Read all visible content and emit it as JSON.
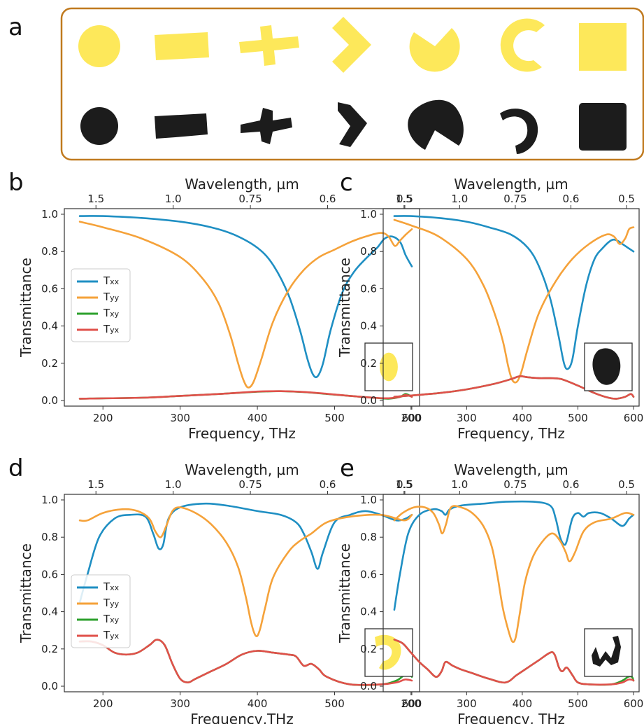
{
  "panel_a": {
    "label": "a",
    "border_color": "#c07a1f",
    "yellow_color": "#fde85a",
    "black_color": "#1c1c1c",
    "shapes_top": [
      "circle",
      "rectangle",
      "cross",
      "chevron",
      "pacman",
      "c-ring",
      "square"
    ],
    "shapes_bottom": [
      "circle",
      "rectangle",
      "cross",
      "chevron",
      "pacman",
      "c-ring",
      "square"
    ]
  },
  "colors": {
    "Txx": "#1f8fc3",
    "Tyy": "#f5a23a",
    "Txy": "#2ca02c",
    "Tyx": "#e0504a"
  },
  "chart_data": [
    {
      "panel": "b",
      "type": "line",
      "xlabel": "Frequency, THz",
      "ylabel": "Transmittance",
      "top_xlabel": "Wavelength, µm",
      "xlim": [
        150,
        610
      ],
      "ylim": [
        -0.03,
        1.03
      ],
      "xticks": [
        "200",
        "300",
        "400",
        "500",
        "600"
      ],
      "xtick_values": [
        200,
        300,
        400,
        500,
        600
      ],
      "yticks": [
        "0.0",
        "0.2",
        "0.4",
        "0.6",
        "0.8",
        "1.0"
      ],
      "ytick_values": [
        0,
        0.2,
        0.4,
        0.6,
        0.8,
        1.0
      ],
      "top_ticks": [
        "1.5",
        "1.0",
        "0.75",
        "0.6",
        "0.5"
      ],
      "top_tick_freqs": [
        200,
        300,
        400,
        500,
        600
      ],
      "legend": [
        "Txx",
        "Tyy",
        "Txy",
        "Tyx"
      ],
      "legend_position": "left",
      "inset": "yellow-ellipse",
      "series": [
        {
          "name": "Txx",
          "x": [
            170,
            200,
            250,
            300,
            340,
            370,
            400,
            420,
            440,
            455,
            465,
            472,
            478,
            485,
            495,
            510,
            525,
            540,
            555,
            565,
            575,
            585,
            592,
            600
          ],
          "y": [
            0.99,
            0.99,
            0.98,
            0.96,
            0.93,
            0.89,
            0.82,
            0.73,
            0.57,
            0.38,
            0.22,
            0.14,
            0.13,
            0.2,
            0.38,
            0.58,
            0.69,
            0.76,
            0.82,
            0.87,
            0.88,
            0.85,
            0.78,
            0.72
          ]
        },
        {
          "name": "Tyy",
          "x": [
            170,
            200,
            250,
            300,
            330,
            350,
            365,
            375,
            382,
            388,
            395,
            405,
            420,
            440,
            460,
            480,
            500,
            520,
            540,
            560,
            570,
            578,
            585,
            592,
            600
          ],
          "y": [
            0.96,
            0.93,
            0.87,
            0.77,
            0.65,
            0.52,
            0.35,
            0.2,
            0.11,
            0.07,
            0.1,
            0.22,
            0.42,
            0.59,
            0.7,
            0.77,
            0.81,
            0.85,
            0.88,
            0.9,
            0.88,
            0.83,
            0.86,
            0.89,
            0.92
          ]
        },
        {
          "name": "Txy",
          "x": [
            170,
            250,
            300,
            350,
            400,
            430,
            460,
            490,
            520,
            550,
            570,
            585,
            592,
            600
          ],
          "y": [
            0.01,
            0.015,
            0.025,
            0.035,
            0.047,
            0.05,
            0.045,
            0.035,
            0.025,
            0.015,
            0.01,
            0.02,
            0.035,
            0.02
          ]
        },
        {
          "name": "Tyx",
          "x": [
            170,
            250,
            300,
            350,
            400,
            430,
            460,
            490,
            520,
            550,
            570,
            585,
            592,
            600
          ],
          "y": [
            0.01,
            0.015,
            0.025,
            0.035,
            0.048,
            0.05,
            0.046,
            0.036,
            0.025,
            0.015,
            0.012,
            0.02,
            0.03,
            0.02
          ]
        }
      ]
    },
    {
      "panel": "c",
      "type": "line",
      "xlabel": "Frequency, THz",
      "ylabel": "Transmittance",
      "top_xlabel": "Wavelength, µm",
      "xlim": [
        150,
        610
      ],
      "ylim": [
        -0.03,
        1.03
      ],
      "xticks": [
        "200",
        "300",
        "400",
        "500",
        "600"
      ],
      "xtick_values": [
        200,
        300,
        400,
        500,
        600
      ],
      "yticks": [
        "0.0",
        "0.2",
        "0.4",
        "0.6",
        "0.8",
        "1.0"
      ],
      "ytick_values": [
        0,
        0.2,
        0.4,
        0.6,
        0.8,
        1.0
      ],
      "top_ticks": [
        "1.5",
        "1.0",
        "0.75",
        "0.6",
        "0.5"
      ],
      "top_tick_freqs": [
        200,
        300,
        400,
        500,
        600
      ],
      "inset": "black-blob",
      "series": [
        {
          "name": "Txx",
          "x": [
            170,
            200,
            250,
            300,
            340,
            380,
            410,
            430,
            450,
            465,
            475,
            482,
            490,
            500,
            515,
            530,
            545,
            560,
            570,
            580,
            590,
            600
          ],
          "y": [
            0.99,
            0.99,
            0.98,
            0.96,
            0.93,
            0.89,
            0.82,
            0.72,
            0.55,
            0.35,
            0.2,
            0.17,
            0.22,
            0.4,
            0.62,
            0.76,
            0.82,
            0.86,
            0.86,
            0.84,
            0.82,
            0.8
          ]
        },
        {
          "name": "Tyy",
          "x": [
            170,
            200,
            250,
            300,
            330,
            350,
            365,
            375,
            382,
            390,
            398,
            410,
            430,
            460,
            490,
            520,
            550,
            565,
            575,
            585,
            592,
            600
          ],
          "y": [
            0.97,
            0.94,
            0.88,
            0.76,
            0.62,
            0.47,
            0.32,
            0.18,
            0.11,
            0.1,
            0.15,
            0.28,
            0.47,
            0.64,
            0.76,
            0.84,
            0.89,
            0.88,
            0.84,
            0.87,
            0.92,
            0.93
          ]
        },
        {
          "name": "Txy",
          "x": [
            170,
            250,
            300,
            350,
            380,
            395,
            410,
            430,
            450,
            470,
            500,
            530,
            555,
            570,
            585,
            595,
            600
          ],
          "y": [
            0.02,
            0.04,
            0.06,
            0.09,
            0.115,
            0.13,
            0.125,
            0.12,
            0.12,
            0.115,
            0.08,
            0.04,
            0.015,
            0.01,
            0.02,
            0.035,
            0.02
          ]
        },
        {
          "name": "Tyx",
          "x": [
            170,
            250,
            300,
            350,
            380,
            395,
            410,
            430,
            450,
            470,
            500,
            530,
            555,
            570,
            585,
            595,
            600
          ],
          "y": [
            0.02,
            0.04,
            0.06,
            0.09,
            0.115,
            0.13,
            0.125,
            0.12,
            0.12,
            0.115,
            0.08,
            0.04,
            0.015,
            0.01,
            0.02,
            0.035,
            0.02
          ]
        }
      ]
    },
    {
      "panel": "d",
      "type": "line",
      "xlabel": "Frequency,THz",
      "ylabel": "Transmittance",
      "top_xlabel": "Wavelength, µm",
      "xlim": [
        150,
        610
      ],
      "ylim": [
        -0.03,
        1.03
      ],
      "xticks": [
        "200",
        "300",
        "400",
        "500",
        "600"
      ],
      "xtick_values": [
        200,
        300,
        400,
        500,
        600
      ],
      "yticks": [
        "0.0",
        "0.2",
        "0.4",
        "0.6",
        "0.8",
        "1.0"
      ],
      "ytick_values": [
        0,
        0.2,
        0.4,
        0.6,
        0.8,
        1.0
      ],
      "top_ticks": [
        "1.5",
        "1.0",
        "0.75",
        "0.6",
        "0.5"
      ],
      "top_tick_freqs": [
        200,
        300,
        400,
        500,
        600
      ],
      "legend": [
        "Txx",
        "Tyy",
        "Txy",
        "Tyx"
      ],
      "legend_position": "left",
      "inset": "yellow-c-shape",
      "series": [
        {
          "name": "Txx",
          "x": [
            170,
            180,
            195,
            215,
            235,
            255,
            265,
            272,
            278,
            285,
            300,
            330,
            360,
            400,
            430,
            450,
            460,
            470,
            478,
            485,
            500,
            520,
            540,
            560,
            580,
            592,
            600
          ],
          "y": [
            0.45,
            0.6,
            0.8,
            0.9,
            0.92,
            0.91,
            0.82,
            0.74,
            0.76,
            0.9,
            0.96,
            0.98,
            0.97,
            0.94,
            0.92,
            0.88,
            0.82,
            0.72,
            0.63,
            0.72,
            0.88,
            0.92,
            0.94,
            0.92,
            0.89,
            0.9,
            0.92
          ]
        },
        {
          "name": "Tyy",
          "x": [
            170,
            180,
            200,
            225,
            245,
            260,
            268,
            275,
            282,
            290,
            300,
            320,
            340,
            360,
            375,
            385,
            392,
            398,
            403,
            410,
            420,
            440,
            455,
            470,
            490,
            520,
            560,
            590,
            600
          ],
          "y": [
            0.89,
            0.89,
            0.93,
            0.95,
            0.94,
            0.9,
            0.83,
            0.8,
            0.86,
            0.94,
            0.96,
            0.93,
            0.87,
            0.77,
            0.64,
            0.48,
            0.34,
            0.27,
            0.3,
            0.42,
            0.58,
            0.72,
            0.78,
            0.82,
            0.88,
            0.91,
            0.92,
            0.89,
            0.92
          ]
        },
        {
          "name": "Txy",
          "x": [
            170,
            185,
            200,
            215,
            230,
            245,
            260,
            270,
            280,
            290,
            300,
            310,
            320,
            340,
            360,
            380,
            400,
            420,
            440,
            450,
            460,
            470,
            480,
            490,
            520,
            560,
            580,
            590,
            595,
            600
          ],
          "y": [
            0.24,
            0.24,
            0.22,
            0.18,
            0.17,
            0.18,
            0.22,
            0.25,
            0.22,
            0.12,
            0.04,
            0.02,
            0.04,
            0.08,
            0.12,
            0.17,
            0.19,
            0.18,
            0.17,
            0.16,
            0.11,
            0.12,
            0.09,
            0.05,
            0.01,
            0.01,
            0.03,
            0.06,
            0.07,
            0.05
          ]
        },
        {
          "name": "Tyx",
          "x": [
            170,
            185,
            200,
            215,
            230,
            245,
            260,
            270,
            280,
            290,
            300,
            310,
            320,
            340,
            360,
            380,
            400,
            420,
            440,
            450,
            460,
            470,
            480,
            490,
            520,
            560,
            580,
            590,
            595,
            600
          ],
          "y": [
            0.24,
            0.24,
            0.22,
            0.18,
            0.17,
            0.18,
            0.22,
            0.25,
            0.22,
            0.12,
            0.04,
            0.02,
            0.04,
            0.08,
            0.12,
            0.17,
            0.19,
            0.18,
            0.17,
            0.16,
            0.11,
            0.12,
            0.09,
            0.05,
            0.01,
            0.01,
            0.02,
            0.035,
            0.035,
            0.03
          ]
        }
      ]
    },
    {
      "panel": "e",
      "type": "line",
      "xlabel": "Frequency, THz",
      "ylabel": "Transmittance",
      "top_xlabel": "Wavelength, µm",
      "xlim": [
        150,
        610
      ],
      "ylim": [
        -0.03,
        1.03
      ],
      "xticks": [
        "200",
        "300",
        "400",
        "500",
        "600"
      ],
      "xtick_values": [
        200,
        300,
        400,
        500,
        600
      ],
      "yticks": [
        "0.0",
        "0.2",
        "0.4",
        "0.6",
        "0.8",
        "1.0"
      ],
      "ytick_values": [
        0,
        0.2,
        0.4,
        0.6,
        0.8,
        1.0
      ],
      "top_ticks": [
        "1.5",
        "1.0",
        "0.75",
        "0.6",
        "0.5"
      ],
      "top_tick_freqs": [
        200,
        300,
        400,
        500,
        600
      ],
      "inset": "black-c-shape",
      "series": [
        {
          "name": "Txx",
          "x": [
            170,
            180,
            195,
            215,
            240,
            255,
            262,
            270,
            290,
            330,
            370,
            420,
            450,
            460,
            468,
            475,
            480,
            490,
            500,
            510,
            520,
            540,
            560,
            580,
            592,
            600
          ],
          "y": [
            0.41,
            0.6,
            0.82,
            0.92,
            0.95,
            0.94,
            0.92,
            0.95,
            0.97,
            0.98,
            0.99,
            0.99,
            0.97,
            0.9,
            0.8,
            0.76,
            0.78,
            0.9,
            0.93,
            0.91,
            0.93,
            0.93,
            0.9,
            0.86,
            0.9,
            0.92
          ]
        },
        {
          "name": "Tyy",
          "x": [
            170,
            185,
            205,
            225,
            240,
            250,
            256,
            263,
            272,
            290,
            310,
            330,
            345,
            355,
            365,
            375,
            382,
            388,
            395,
            405,
            420,
            440,
            455,
            468,
            478,
            485,
            495,
            510,
            530,
            560,
            585,
            600
          ],
          "y": [
            0.89,
            0.93,
            0.96,
            0.96,
            0.93,
            0.87,
            0.82,
            0.87,
            0.96,
            0.96,
            0.93,
            0.86,
            0.75,
            0.6,
            0.42,
            0.3,
            0.24,
            0.26,
            0.38,
            0.56,
            0.7,
            0.79,
            0.82,
            0.78,
            0.72,
            0.67,
            0.72,
            0.83,
            0.88,
            0.9,
            0.93,
            0.92
          ]
        },
        {
          "name": "Txy",
          "x": [
            170,
            185,
            200,
            215,
            230,
            245,
            255,
            262,
            275,
            290,
            310,
            340,
            370,
            390,
            410,
            430,
            450,
            458,
            466,
            472,
            480,
            490,
            500,
            520,
            560,
            580,
            590,
            597,
            600
          ],
          "y": [
            0.25,
            0.23,
            0.18,
            0.13,
            0.09,
            0.05,
            0.08,
            0.13,
            0.11,
            0.09,
            0.07,
            0.04,
            0.02,
            0.06,
            0.1,
            0.14,
            0.18,
            0.17,
            0.1,
            0.08,
            0.1,
            0.06,
            0.02,
            0.01,
            0.01,
            0.03,
            0.05,
            0.05,
            0.03
          ]
        },
        {
          "name": "Tyx",
          "x": [
            170,
            185,
            200,
            215,
            230,
            245,
            255,
            262,
            275,
            290,
            310,
            340,
            370,
            390,
            410,
            430,
            450,
            458,
            466,
            472,
            480,
            490,
            500,
            520,
            560,
            580,
            590,
            597,
            600
          ],
          "y": [
            0.25,
            0.23,
            0.18,
            0.13,
            0.09,
            0.05,
            0.08,
            0.13,
            0.11,
            0.09,
            0.07,
            0.04,
            0.02,
            0.06,
            0.1,
            0.14,
            0.18,
            0.17,
            0.1,
            0.08,
            0.1,
            0.06,
            0.02,
            0.01,
            0.01,
            0.02,
            0.035,
            0.035,
            0.03
          ]
        }
      ]
    }
  ]
}
